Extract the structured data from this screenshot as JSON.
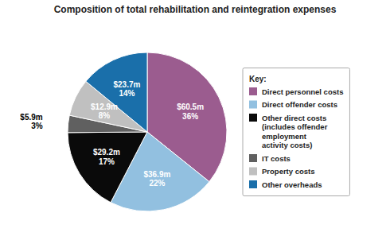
{
  "chart_data": {
    "type": "pie",
    "title": "Composition of total rehabilitation and reintegration expenses",
    "categories": [
      "Direct personnel costs",
      "Direct offender costs",
      "Other direct costs\n(includes offender\nemployment\nactivity costs)",
      "IT costs",
      "Property costs",
      "Other overheads"
    ],
    "values": [
      60.5,
      36.9,
      29.2,
      5.9,
      12.9,
      23.7
    ],
    "value_labels": [
      "$60.5m",
      "$36.9m",
      "$29.2m",
      "$5.9m",
      "$12.9m",
      "$23.7m"
    ],
    "percentages": [
      36,
      22,
      17,
      3,
      8,
      14
    ],
    "percentage_labels": [
      "36%",
      "22%",
      "17%",
      "3%",
      "8%",
      "14%"
    ],
    "colors": [
      "#9b5c8f",
      "#92c0e0",
      "#0a0a0a",
      "#606060",
      "#c0c0c0",
      "#1a6faa"
    ],
    "legend": "right",
    "legend_title": "Key:",
    "data_labels": true
  }
}
